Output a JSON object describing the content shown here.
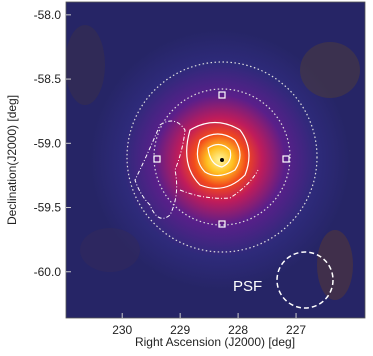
{
  "chart_data": {
    "type": "heatmap",
    "x_label": "Right Ascension (J2000) [deg]",
    "y_label": "Declination(J2000) [deg]",
    "annotation": "PSF",
    "xlim": [
      230.97,
      225.81
    ],
    "ylim": [
      -60.36,
      -57.9
    ],
    "xticks": [
      230,
      229,
      228,
      227
    ],
    "yticks": [
      {
        "value": -58.0,
        "label": "-58.0"
      },
      {
        "value": -58.5,
        "label": "-58.5"
      },
      {
        "value": -59.0,
        "label": "-59.0"
      },
      {
        "value": -59.5,
        "label": "-59.5"
      },
      {
        "value": -60.0,
        "label": "-60.0"
      }
    ]
  }
}
